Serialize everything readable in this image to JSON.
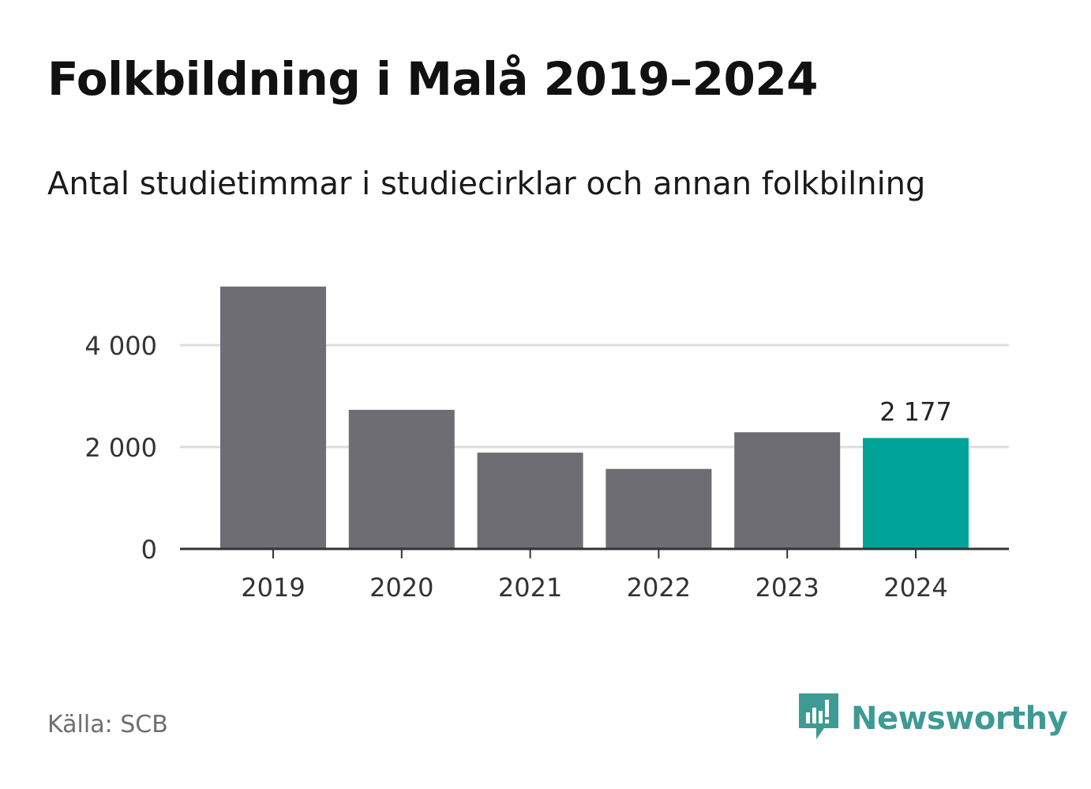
{
  "header": {
    "title": "Folkbildning i Malå 2019–2024",
    "subtitle": "Antal studietimmar i studiecirklar och annan folkbilning"
  },
  "footer": {
    "source": "Källa: SCB",
    "brand": "Newsworthy",
    "brand_icon": "newsworthy-logo-icon"
  },
  "colors": {
    "bar": "#6e6d73",
    "highlight": "#00a398",
    "grid": "#dddddd",
    "axis": "#333333",
    "brand": "#3e9a94"
  },
  "chart_data": {
    "type": "bar",
    "title": "Folkbildning i Malå 2019–2024",
    "subtitle": "Antal studietimmar i studiecirklar och annan folkbilning",
    "categories": [
      "2019",
      "2020",
      "2021",
      "2022",
      "2023",
      "2024"
    ],
    "values": [
      5150,
      2730,
      1890,
      1570,
      2290,
      2177
    ],
    "highlight_index": 5,
    "data_labels": [
      null,
      null,
      null,
      null,
      null,
      "2 177"
    ],
    "yticks": [
      0,
      2000,
      4000
    ],
    "ytick_labels": [
      "0",
      "2 000",
      "4 000"
    ],
    "ylim": [
      0,
      5500
    ],
    "grid": true,
    "xlabel": "",
    "ylabel": ""
  }
}
